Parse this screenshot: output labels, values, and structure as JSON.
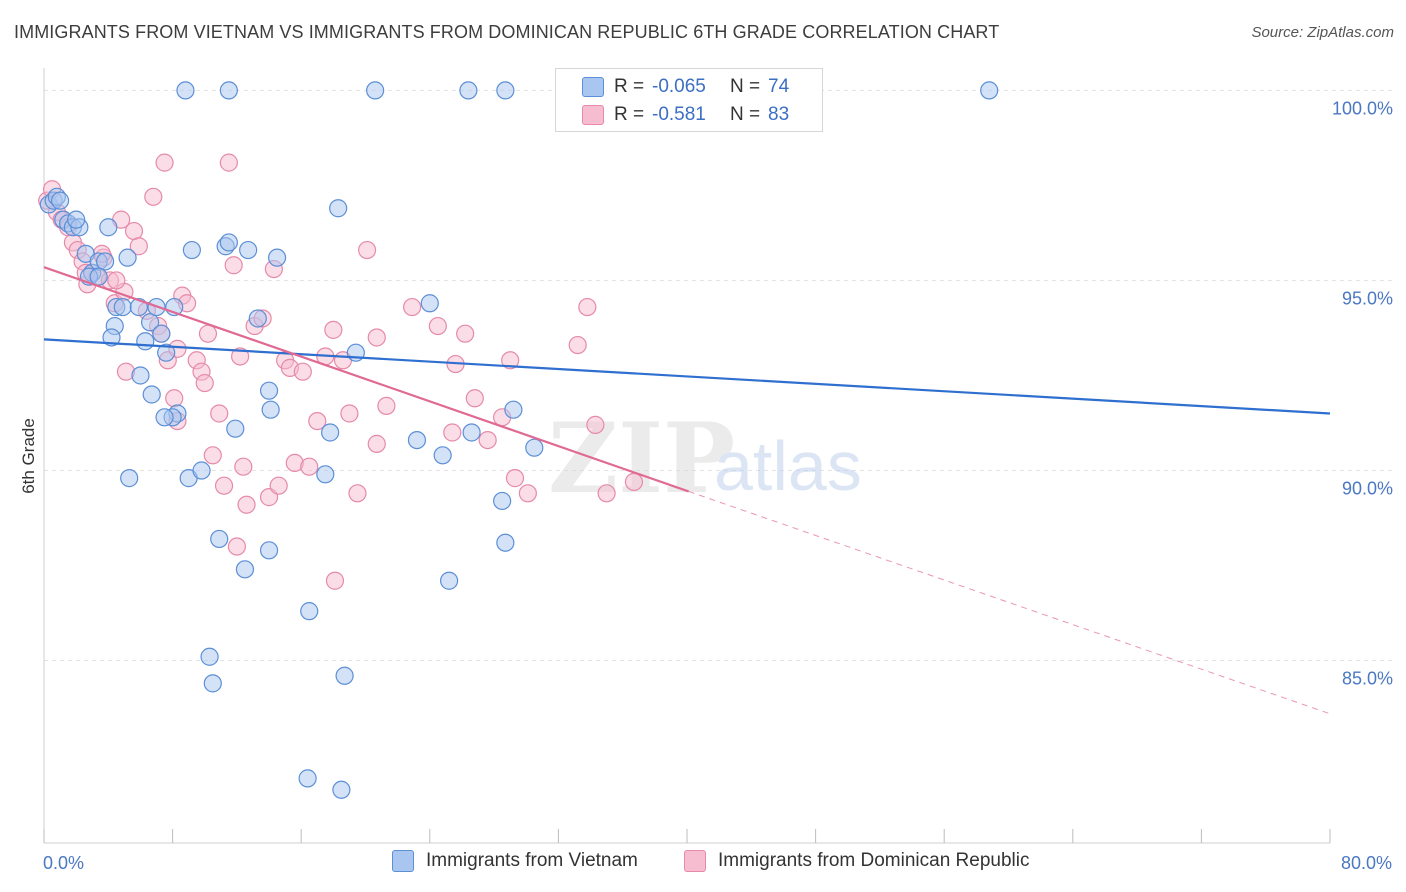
{
  "header": {
    "title": "IMMIGRANTS FROM VIETNAM VS IMMIGRANTS FROM DOMINICAN REPUBLIC 6TH GRADE CORRELATION CHART",
    "source": "Source: ZipAtlas.com"
  },
  "legend": {
    "rows": [
      {
        "r_label": "R =",
        "r_value": "-0.065",
        "n_label": "N =",
        "n_value": "74"
      },
      {
        "r_label": "R =",
        "r_value": "-0.581",
        "n_label": "N =",
        "n_value": "83"
      }
    ]
  },
  "bottom_legend": {
    "items": [
      "Immigrants from Vietnam",
      "Immigrants from Dominican Republic"
    ]
  },
  "watermark": {
    "zip": "ZIP",
    "atlas": "atlas"
  },
  "colors": {
    "blue_fill": "#a9c6f0",
    "blue_stroke": "#5b8fd6",
    "blue_line": "#2f6fcf",
    "pink_fill": "#f6bcd0",
    "pink_stroke": "#e68aaa",
    "pink_line": "#e06a94",
    "grid": "#e3e3e3",
    "tick_text": "#4a78c2"
  },
  "chart_data": {
    "type": "scatter",
    "title": "IMMIGRANTS FROM VIETNAM VS IMMIGRANTS FROM DOMINICAN REPUBLIC 6TH GRADE CORRELATION CHART",
    "xlabel": "",
    "ylabel": "6th Grade",
    "xlim": [
      0,
      80
    ],
    "ylim": [
      80.2,
      100.8
    ],
    "x_tick_labels": [
      "0.0%",
      "80.0%"
    ],
    "y_ticks": [
      85,
      90,
      95,
      100
    ],
    "y_tick_labels": [
      "85.0%",
      "90.0%",
      "95.0%",
      "100.0%"
    ],
    "grid": true,
    "legend_position": "top-center",
    "series": [
      {
        "name": "Immigrants from Vietnam",
        "color": "#a9c6f0",
        "trend": {
          "x": [
            0,
            80
          ],
          "y": [
            93.45,
            91.5
          ],
          "style": "solid"
        },
        "points": [
          [
            0.3,
            97.0
          ],
          [
            0.6,
            97.1
          ],
          [
            0.8,
            97.2
          ],
          [
            1.0,
            97.1
          ],
          [
            1.2,
            96.6
          ],
          [
            1.5,
            96.5
          ],
          [
            1.8,
            96.4
          ],
          [
            2.2,
            96.4
          ],
          [
            2.6,
            95.7
          ],
          [
            3.0,
            95.2
          ],
          [
            3.4,
            95.5
          ],
          [
            3.8,
            95.5
          ],
          [
            2.8,
            95.1
          ],
          [
            4.5,
            94.3
          ],
          [
            4.9,
            94.3
          ],
          [
            5.2,
            95.6
          ],
          [
            4.4,
            93.8
          ],
          [
            4.2,
            93.5
          ],
          [
            5.9,
            94.3
          ],
          [
            6.3,
            93.4
          ],
          [
            6.6,
            93.9
          ],
          [
            7.0,
            94.3
          ],
          [
            7.3,
            93.6
          ],
          [
            7.6,
            93.1
          ],
          [
            8.1,
            94.3
          ],
          [
            6.0,
            92.5
          ],
          [
            6.7,
            92.0
          ],
          [
            8.3,
            91.5
          ],
          [
            8.0,
            91.4
          ],
          [
            11.3,
            95.9
          ],
          [
            11.5,
            96.0
          ],
          [
            12.7,
            95.8
          ],
          [
            14.5,
            95.6
          ],
          [
            18.3,
            96.9
          ],
          [
            13.3,
            94.0
          ],
          [
            11.9,
            91.1
          ],
          [
            14.0,
            92.1
          ],
          [
            14.1,
            91.6
          ],
          [
            17.8,
            91.0
          ],
          [
            19.4,
            93.1
          ],
          [
            24.0,
            94.4
          ],
          [
            23.2,
            90.8
          ],
          [
            24.8,
            90.4
          ],
          [
            26.6,
            91.0
          ],
          [
            29.2,
            91.6
          ],
          [
            28.5,
            89.2
          ],
          [
            30.5,
            90.6
          ],
          [
            28.7,
            88.1
          ],
          [
            5.3,
            89.8
          ],
          [
            9.0,
            89.8
          ],
          [
            9.8,
            90.0
          ],
          [
            10.9,
            88.2
          ],
          [
            12.5,
            87.4
          ],
          [
            14.0,
            87.9
          ],
          [
            16.5,
            86.3
          ],
          [
            17.5,
            89.9
          ],
          [
            25.2,
            87.1
          ],
          [
            10.3,
            85.1
          ],
          [
            10.5,
            84.4
          ],
          [
            18.7,
            84.6
          ],
          [
            16.4,
            81.9
          ],
          [
            18.5,
            81.6
          ],
          [
            8.8,
            100.0
          ],
          [
            11.5,
            100.0
          ],
          [
            20.6,
            100.0
          ],
          [
            26.4,
            100.0
          ],
          [
            28.7,
            100.0
          ],
          [
            9.2,
            95.8
          ],
          [
            4.0,
            96.4
          ],
          [
            7.5,
            91.4
          ],
          [
            2.0,
            96.6
          ],
          [
            3.4,
            95.1
          ],
          [
            58.8,
            100.0
          ],
          [
            36.0,
            100.0
          ]
        ]
      },
      {
        "name": "Immigrants from Dominican Republic",
        "color": "#f6bcd0",
        "trend": {
          "x": [
            0,
            40.1
          ],
          "y": [
            95.35,
            89.45
          ],
          "style": "solid",
          "dashed_to": {
            "x": 80,
            "y": 83.6
          }
        },
        "points": [
          [
            0.2,
            97.1
          ],
          [
            0.5,
            97.4
          ],
          [
            0.8,
            96.8
          ],
          [
            1.1,
            96.6
          ],
          [
            1.5,
            96.4
          ],
          [
            1.8,
            96.0
          ],
          [
            2.1,
            95.8
          ],
          [
            2.4,
            95.5
          ],
          [
            2.7,
            94.9
          ],
          [
            3.0,
            95.2
          ],
          [
            3.3,
            95.1
          ],
          [
            3.7,
            95.6
          ],
          [
            4.1,
            95.0
          ],
          [
            4.4,
            94.4
          ],
          [
            4.8,
            96.6
          ],
          [
            5.0,
            94.7
          ],
          [
            5.6,
            96.3
          ],
          [
            5.9,
            95.9
          ],
          [
            6.4,
            94.2
          ],
          [
            6.8,
            97.2
          ],
          [
            7.1,
            93.8
          ],
          [
            7.3,
            93.6
          ],
          [
            7.5,
            98.1
          ],
          [
            7.7,
            92.9
          ],
          [
            8.1,
            91.9
          ],
          [
            8.3,
            91.3
          ],
          [
            8.6,
            94.6
          ],
          [
            8.9,
            94.4
          ],
          [
            9.5,
            92.9
          ],
          [
            9.8,
            92.6
          ],
          [
            10.2,
            93.6
          ],
          [
            10.5,
            90.4
          ],
          [
            10.9,
            91.5
          ],
          [
            11.2,
            89.6
          ],
          [
            11.5,
            98.1
          ],
          [
            11.8,
            95.4
          ],
          [
            12.2,
            93.0
          ],
          [
            12.4,
            90.1
          ],
          [
            12.6,
            89.1
          ],
          [
            13.1,
            93.8
          ],
          [
            13.6,
            94.0
          ],
          [
            14.0,
            89.3
          ],
          [
            14.3,
            95.3
          ],
          [
            14.6,
            89.6
          ],
          [
            15.0,
            92.9
          ],
          [
            15.3,
            92.7
          ],
          [
            15.6,
            90.2
          ],
          [
            16.1,
            92.6
          ],
          [
            16.5,
            90.1
          ],
          [
            17.0,
            91.3
          ],
          [
            17.5,
            93.0
          ],
          [
            18.0,
            93.7
          ],
          [
            18.6,
            92.9
          ],
          [
            19.0,
            91.5
          ],
          [
            19.5,
            89.4
          ],
          [
            20.1,
            95.8
          ],
          [
            20.7,
            90.7
          ],
          [
            21.3,
            91.7
          ],
          [
            22.9,
            94.3
          ],
          [
            24.5,
            93.8
          ],
          [
            25.6,
            92.8
          ],
          [
            25.4,
            91.0
          ],
          [
            26.8,
            91.9
          ],
          [
            27.6,
            90.8
          ],
          [
            28.5,
            91.4
          ],
          [
            29.0,
            92.9
          ],
          [
            29.3,
            89.8
          ],
          [
            30.1,
            89.4
          ],
          [
            33.2,
            93.3
          ],
          [
            33.8,
            94.3
          ],
          [
            34.3,
            91.2
          ],
          [
            35.0,
            89.4
          ],
          [
            36.7,
            89.7
          ],
          [
            18.1,
            87.1
          ],
          [
            12.0,
            88.0
          ],
          [
            20.7,
            93.5
          ],
          [
            8.3,
            93.2
          ],
          [
            4.5,
            95.0
          ],
          [
            3.6,
            95.7
          ],
          [
            2.6,
            95.2
          ],
          [
            5.1,
            92.6
          ],
          [
            10.0,
            92.3
          ],
          [
            26.2,
            93.6
          ]
        ]
      }
    ]
  }
}
